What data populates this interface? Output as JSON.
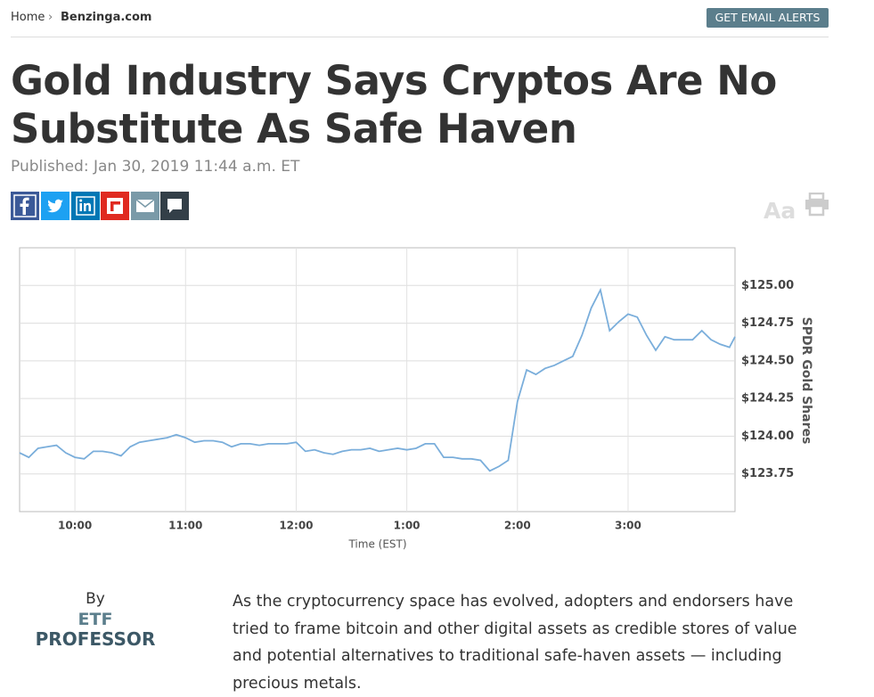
{
  "breadcrumb": [
    "Home",
    "Benzinga.com"
  ],
  "alert_button": "GET EMAIL ALERTS",
  "headline": "Gold Industry Says Cryptos Are No Substitute As Safe Haven",
  "published": "Published: Jan 30, 2019 11:44 a.m. ET",
  "font_toggle": "Aa",
  "chart_data": {
    "type": "line",
    "xlabel": "Time (EST)",
    "ylabel": "SPDR Gold Shares",
    "x": [
      570,
      575,
      580,
      585,
      590,
      595,
      600,
      605,
      610,
      615,
      620,
      625,
      630,
      635,
      640,
      645,
      650,
      655,
      660,
      665,
      670,
      675,
      680,
      685,
      690,
      695,
      700,
      705,
      710,
      715,
      720,
      725,
      730,
      735,
      740,
      745,
      750,
      755,
      760,
      765,
      770,
      775,
      780,
      785,
      790,
      795,
      800,
      805,
      810,
      815,
      820,
      825,
      830,
      835,
      840,
      845,
      850,
      855,
      860,
      865,
      870,
      875,
      880,
      885,
      890,
      895,
      900,
      905,
      910,
      915,
      920,
      925,
      930,
      935,
      940,
      945,
      950,
      955,
      958
    ],
    "series": [
      {
        "name": "SPDR Gold Shares",
        "color": "#7aaedb",
        "values": [
          123.89,
          123.86,
          123.92,
          123.93,
          123.94,
          123.89,
          123.86,
          123.85,
          123.9,
          123.9,
          123.89,
          123.87,
          123.93,
          123.96,
          123.97,
          123.98,
          123.99,
          124.01,
          123.99,
          123.96,
          123.97,
          123.97,
          123.96,
          123.93,
          123.95,
          123.95,
          123.94,
          123.95,
          123.95,
          123.95,
          123.96,
          123.9,
          123.91,
          123.89,
          123.88,
          123.9,
          123.91,
          123.91,
          123.92,
          123.9,
          123.91,
          123.92,
          123.91,
          123.92,
          123.95,
          123.95,
          123.86,
          123.86,
          123.85,
          123.85,
          123.84,
          123.77,
          123.8,
          123.84,
          124.23,
          124.44,
          124.41,
          124.45,
          124.47,
          124.5,
          124.53,
          124.67,
          124.85,
          124.97,
          124.7,
          124.76,
          124.81,
          124.79,
          124.67,
          124.57,
          124.66,
          124.64,
          124.64,
          124.64,
          124.7,
          124.64,
          124.61,
          124.59,
          124.66
        ]
      }
    ],
    "xlim": [
      570,
      958
    ],
    "xticks": [
      {
        "value": 600,
        "label": "10:00"
      },
      {
        "value": 660,
        "label": "11:00"
      },
      {
        "value": 720,
        "label": "12:00"
      },
      {
        "value": 780,
        "label": "1:00"
      },
      {
        "value": 840,
        "label": "2:00"
      },
      {
        "value": 900,
        "label": "3:00"
      }
    ],
    "ylim": [
      123.5,
      125.25
    ],
    "yticks": [
      {
        "value": 123.75,
        "label": "$123.75"
      },
      {
        "value": 124,
        "label": "$124.00"
      },
      {
        "value": 124.25,
        "label": "$124.25"
      },
      {
        "value": 124.5,
        "label": "$124.50"
      },
      {
        "value": 124.75,
        "label": "$124.75"
      },
      {
        "value": 125,
        "label": "$125.00"
      }
    ],
    "grid": true
  },
  "author": {
    "by": "By",
    "name_lines": [
      "ETF",
      "PROFESSOR"
    ]
  },
  "body": "As the cryptocurrency space has evolved, adopters and endorsers have tried to frame bitcoin and other digital assets as credible stores of value and potential alternatives to traditional safe-haven assets — including precious metals."
}
